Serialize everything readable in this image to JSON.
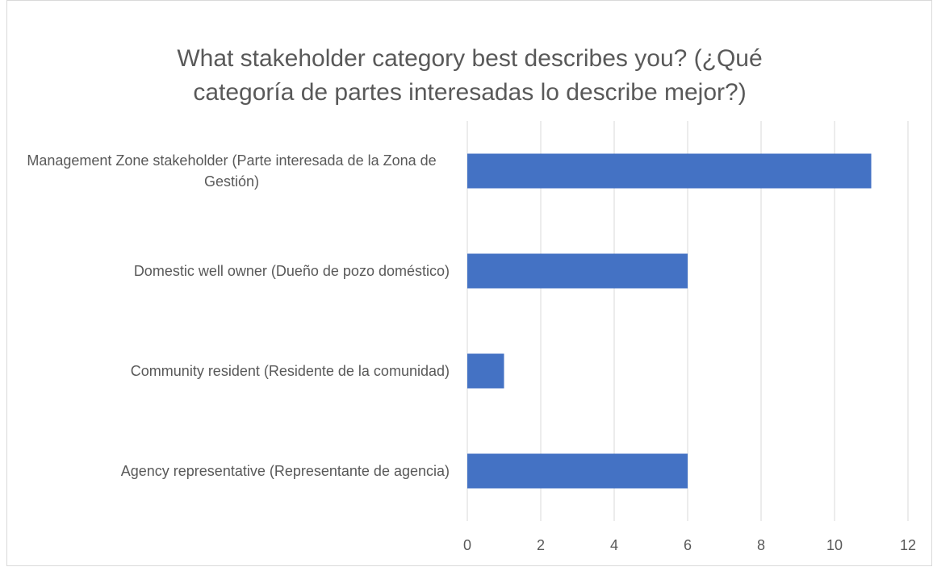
{
  "chart_data": {
    "type": "bar",
    "orientation": "horizontal",
    "title": "What stakeholder category best describes you? (¿Qué\ncategoría de partes interesadas lo describe mejor?)",
    "categories": [
      "Management Zone stakeholder (Parte interesada de la Zona de Gestión)",
      "Domestic well owner (Dueño de pozo doméstico)",
      "Community resident (Residente de la comunidad)",
      "Agency representative (Representante de agencia)"
    ],
    "values": [
      11,
      6,
      1,
      6
    ],
    "color": "#4472c4",
    "xlim": [
      0,
      12
    ],
    "xticks": [
      0,
      2,
      4,
      6,
      8,
      10,
      12
    ],
    "grid": true
  }
}
